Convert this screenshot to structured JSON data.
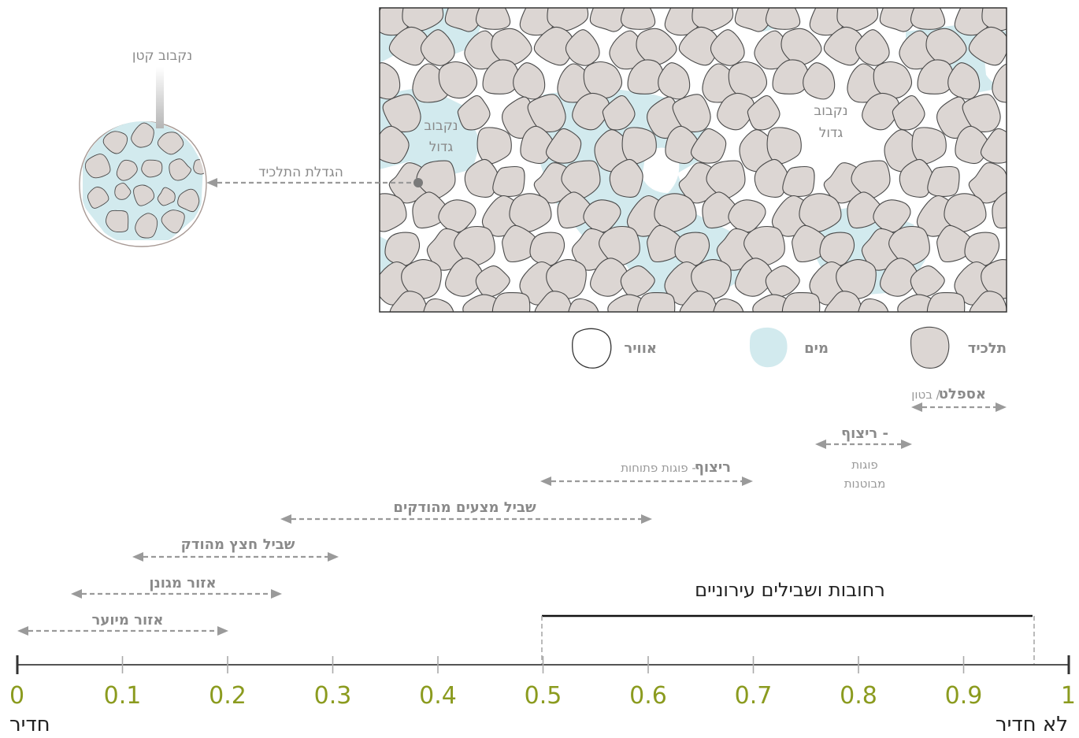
{
  "magnifier": {
    "small_pore_label": "נקבוב קטן",
    "enlarge_label": "הגדלת התלכיד"
  },
  "cross_section": {
    "large_pore_left": [
      "נקבוב",
      "גדול"
    ],
    "large_pore_right": [
      "נקבוב",
      "גדול"
    ]
  },
  "legend": {
    "aggregate": "תלכיד",
    "water": "מים",
    "air": "אוויר"
  },
  "colors": {
    "water": "#d2eaee",
    "grain_fill": "#dcd6d3",
    "grain_stroke": "#4a4a4a",
    "axis_tick_label": "#8b9b1f",
    "arrow": "#9a9a9a"
  },
  "ranges": [
    {
      "bold": "אספלט",
      "normal": "/ בטון",
      "from": 0.87,
      "to": 0.97
    },
    {
      "bold": "ריצוף -",
      "normal": "",
      "sub": [
        "פוגות",
        "מבוטנות"
      ],
      "from": 0.76,
      "to": 0.85
    },
    {
      "bold": "ריצוף",
      "normal": "-  פוגות פתוחות",
      "from": 0.5,
      "to": 0.7
    },
    {
      "bold": "שביל מצעים מהודקים",
      "normal": "",
      "from": 0.25,
      "to": 0.6
    },
    {
      "bold": "שביל חצץ מהודק",
      "normal": "",
      "from": 0.11,
      "to": 0.3
    },
    {
      "bold": "אזור מגונן",
      "normal": "",
      "from": 0.05,
      "to": 0.25
    },
    {
      "bold": "אזור מיוער",
      "normal": "",
      "from": 0.0,
      "to": 0.2
    }
  ],
  "urban": {
    "label": "רחובות ושבילים עירוניים",
    "from": 0.5,
    "to": 0.97
  },
  "axis": {
    "ticks": [
      "0",
      "0.1",
      "0.2",
      "0.3",
      "0.4",
      "0.5",
      "0.6",
      "0.7",
      "0.8",
      "0.9",
      "1"
    ],
    "left_end_label": "חדיר",
    "right_end_label": "לא חדיר"
  }
}
